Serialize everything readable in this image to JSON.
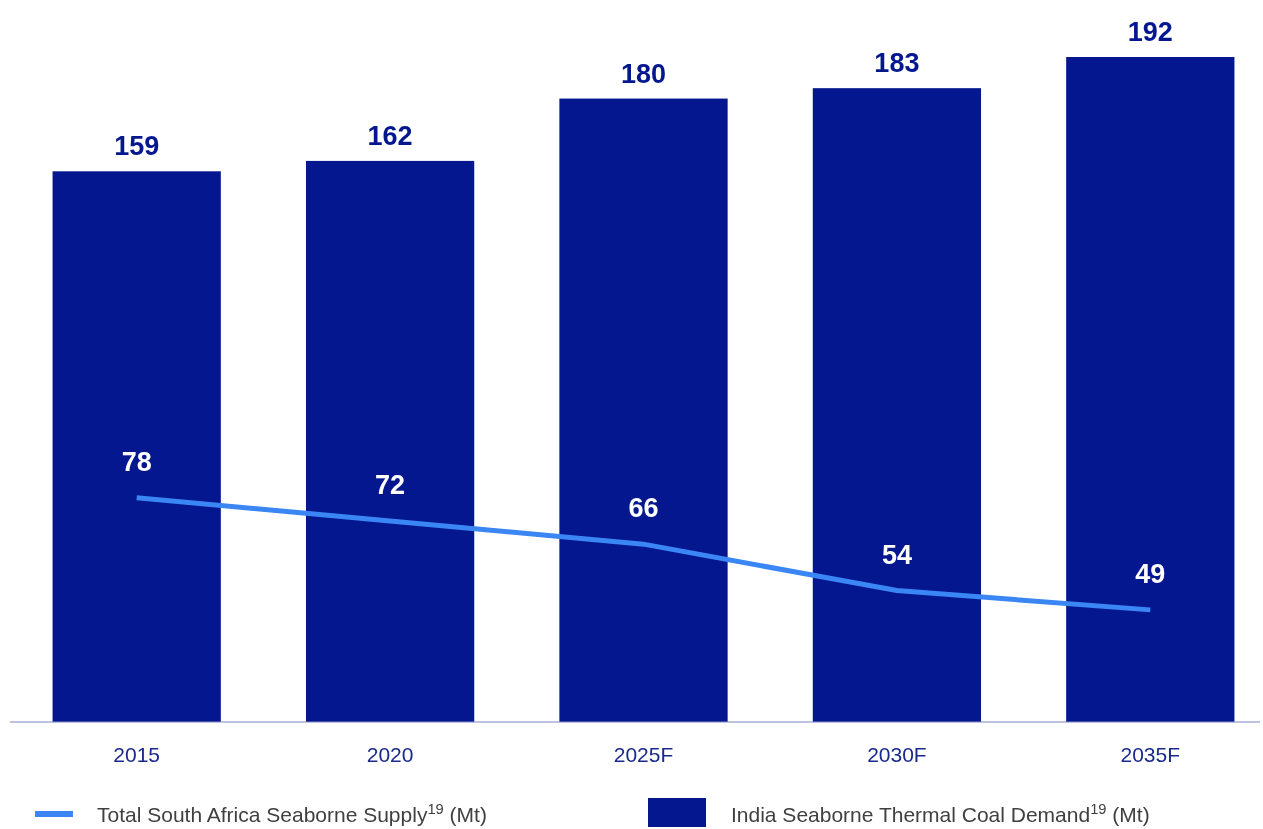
{
  "chart_data": {
    "type": "bar",
    "categories": [
      "2015",
      "2020",
      "2025F",
      "2030F",
      "2035F"
    ],
    "series": [
      {
        "name": "India Seaborne Thermal Coal Demand$^{19}$ (Mt)",
        "color": "#04178f",
        "values": [
          159,
          162,
          180,
          183,
          192
        ]
      },
      {
        "name": "Total South Africa Seaborne Supply$^{19}$ (Mt)",
        "type": "line",
        "axis": "y2",
        "color": "#3a86f5",
        "values": [
          78,
          72,
          66,
          54,
          49
        ]
      }
    ],
    "ylim": [
      0,
      192
    ],
    "y2lim": [
      20,
      192
    ],
    "data_labels": true,
    "legend": "bottom",
    "marker": "none",
    "line_style": "solid",
    "tick_labels": "x"
  }
}
